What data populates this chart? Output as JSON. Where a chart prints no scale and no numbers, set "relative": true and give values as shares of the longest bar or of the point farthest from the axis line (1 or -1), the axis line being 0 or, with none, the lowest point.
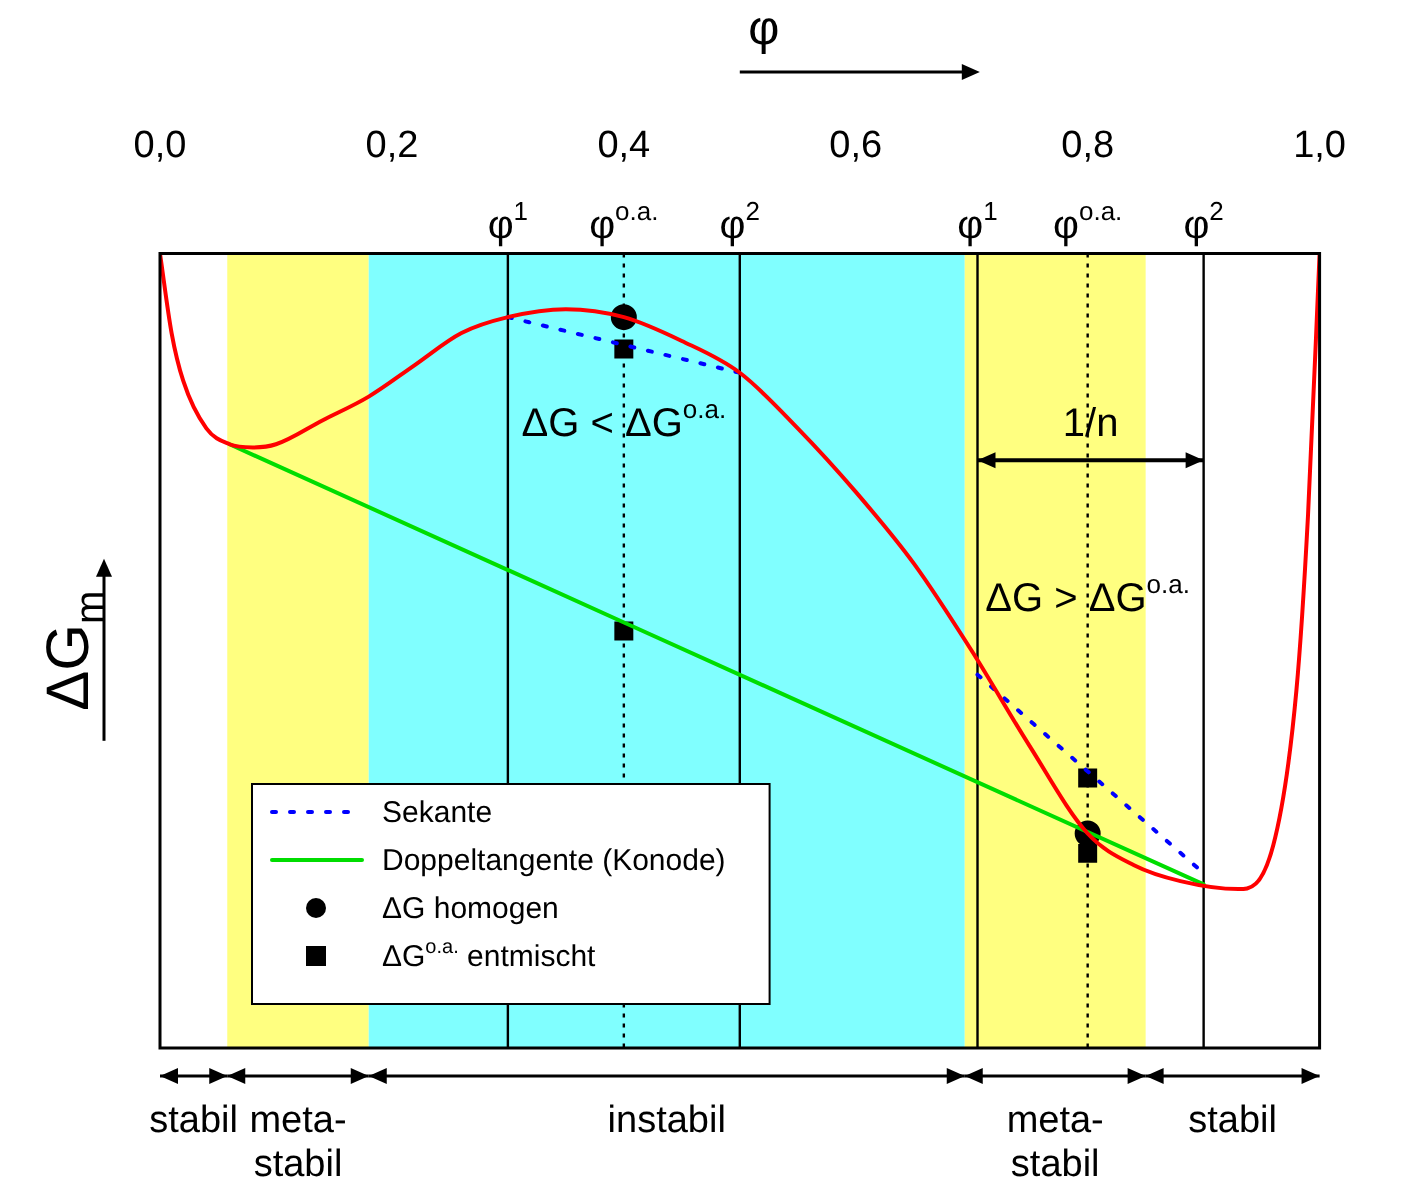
{
  "chart_data": {
    "type": "line",
    "xlabel": "φ",
    "ylabel": "ΔG$_{m}$",
    "relative": true,
    "xlim": [
      0,
      1
    ],
    "xticks": [
      {
        "value": 0,
        "label": "0,0"
      },
      {
        "value": 0.2,
        "label": "0,2"
      },
      {
        "value": 0.4,
        "label": "0,4"
      },
      {
        "value": 0.6,
        "label": "0,6"
      },
      {
        "value": 0.8,
        "label": "0,8"
      },
      {
        "value": 1,
        "label": "1,0"
      }
    ],
    "tick_labels": "x",
    "grid": false,
    "legend": "bottom left",
    "series": [
      {
        "type": "line",
        "color": "#ff0000",
        "line_style": "solid",
        "marker": "none",
        "x": [
          0,
          0.01,
          0.02,
          0.04,
          0.06,
          0.08,
          0.1,
          0.14,
          0.18,
          0.22,
          0.26,
          0.3,
          0.35,
          0.4,
          0.45,
          0.5,
          0.55,
          0.6,
          0.65,
          0.7,
          0.75,
          0.8,
          0.84,
          0.88,
          0.93,
          0.96,
          0.98,
          0.99,
          1
        ],
        "values": [
          1,
          0.9,
          0.84,
          0.78,
          0.76,
          0.756,
          0.76,
          0.79,
          0.82,
          0.86,
          0.9,
          0.92,
          0.93,
          0.92,
          0.89,
          0.85,
          0.78,
          0.7,
          0.61,
          0.5,
          0.38,
          0.27,
          0.23,
          0.21,
          0.2,
          0.255,
          0.45,
          0.67,
          1
        ]
      },
      {
        "type": "line",
        "name": "Sekante",
        "color": "#0000ff",
        "line_style": "dotted",
        "marker": "none",
        "x": [
          0.3,
          0.5,
          0.6,
          0.705,
          0.9
        ],
        "values": [
          0.92,
          0.85,
          null,
          0.47,
          0.22
        ]
      },
      {
        "type": "line",
        "name": "Doppeltangente (Konode)",
        "color": "#00dd00",
        "line_style": "solid",
        "marker": "none",
        "x": [
          0.06,
          0.9
        ],
        "values": [
          0.76,
          0.206
        ]
      },
      {
        "type": "scatter",
        "name": "ΔG homogen",
        "color": "#000000",
        "marker": "circle",
        "x": [
          0.4,
          0.8
        ],
        "values": [
          0.92,
          0.27
        ]
      },
      {
        "type": "scatter",
        "name": "ΔG$^{o.a.}$ entmischt",
        "color": "#000000",
        "marker": "square",
        "x": [
          0.4,
          0.4,
          0.8,
          0.8
        ],
        "values": [
          0.88,
          0.525,
          0.34,
          0.245
        ]
      }
    ],
    "bands": [
      {
        "axis": "x",
        "from": 0.058,
        "to": 0.18,
        "label": "meta-\nstabil",
        "color": "#ffff80"
      },
      {
        "axis": "x",
        "from": 0.18,
        "to": 0.694,
        "label": "instabil",
        "color": "#80ffff"
      },
      {
        "axis": "x",
        "from": 0.694,
        "to": 0.85,
        "label": "meta-\nstabil",
        "color": "#ffff80"
      }
    ],
    "ref_lines": [
      {
        "axis": "x",
        "value": 0.3,
        "label": "φ$^{1}$",
        "line_style": "solid"
      },
      {
        "axis": "x",
        "value": 0.4,
        "label": "φ$^{o.a.}$",
        "line_style": "dotted"
      },
      {
        "axis": "x",
        "value": 0.5,
        "label": "φ$^{2}$",
        "line_style": "solid"
      },
      {
        "axis": "x",
        "value": 0.705,
        "label": "φ$^{1}$",
        "line_style": "solid"
      },
      {
        "axis": "x",
        "value": 0.8,
        "label": "φ$^{o.a.}$",
        "line_style": "dotted"
      },
      {
        "axis": "x",
        "value": 0.9,
        "label": "φ$^{2}$",
        "line_style": "solid"
      }
    ],
    "annotations": [
      {
        "text": "ΔG < ΔG$^{o.a.}$",
        "x": 0.4,
        "y": 0.77
      },
      {
        "text": "ΔG > ΔG$^{o.a.}$",
        "x": 0.8,
        "y": 0.55
      },
      {
        "text": "1/n",
        "x": 0.8025,
        "y": 0.77
      },
      "stabil",
      "stabil"
    ]
  }
}
